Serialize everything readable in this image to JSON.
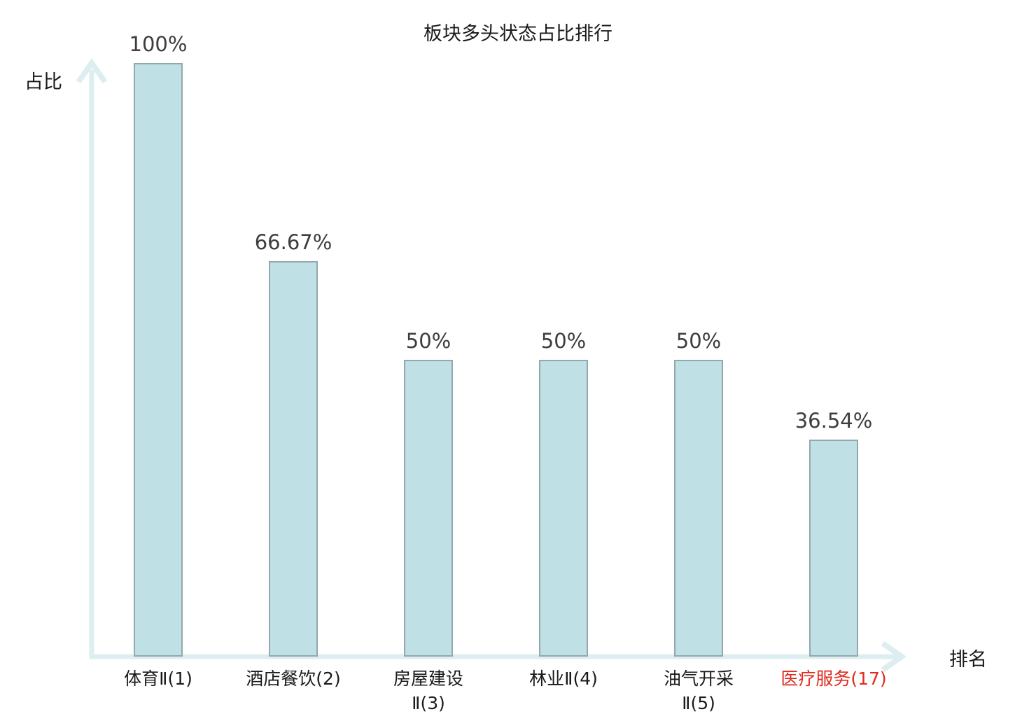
{
  "title": "板块多头状态占比排行",
  "y_axis_label": "占比",
  "x_axis_label": "排名",
  "colors": {
    "bar_fill": "#bfe0e4",
    "bar_border": "#93a8ad",
    "axis": "#ddeef0",
    "value_text": "#3d3d3d",
    "category_text": "#1a1a1a",
    "highlight_text": "#e02a1e"
  },
  "chart_data": {
    "type": "bar",
    "title": "板块多头状态占比排行",
    "xlabel": "排名",
    "ylabel": "占比",
    "ylim": [
      0,
      100
    ],
    "grid": false,
    "legend": false,
    "categories": [
      "体育Ⅱ(1)",
      "酒店餐饮(2)",
      "房屋建设Ⅱ(3)",
      "林业Ⅱ(4)",
      "油气开采Ⅱ(5)",
      "医疗服务(17)"
    ],
    "category_lines": [
      [
        "体育Ⅱ(1)"
      ],
      [
        "酒店餐饮(2)"
      ],
      [
        "房屋建设",
        "Ⅱ(3)"
      ],
      [
        "林业Ⅱ(4)"
      ],
      [
        "油气开采",
        "Ⅱ(5)"
      ],
      [
        "医疗服务(17)"
      ]
    ],
    "values": [
      100,
      66.67,
      50,
      50,
      50,
      36.54
    ],
    "value_labels": [
      "100%",
      "66.67%",
      "50%",
      "50%",
      "50%",
      "36.54%"
    ],
    "highlighted_category_index": 5,
    "highlight_reason_color": "#e02a1e"
  }
}
